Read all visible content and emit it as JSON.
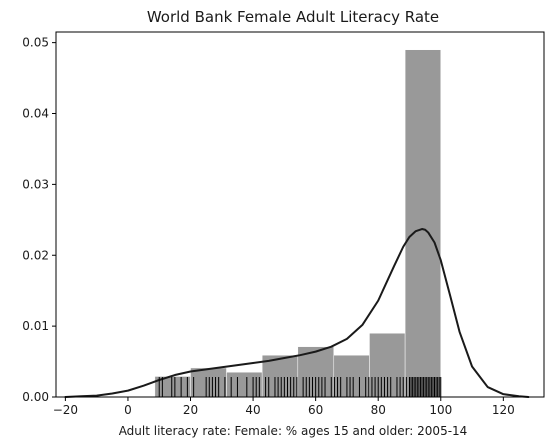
{
  "chart_data": {
    "type": "histogram",
    "title": "World Bank Female Adult Literacy Rate",
    "xlabel": "Adult literacy rate: Female: % ages 15 and older: 2005-14",
    "ylabel": "",
    "xlim": [
      -23,
      133
    ],
    "ylim": [
      0,
      0.0515
    ],
    "xticks": [
      -20,
      0,
      20,
      40,
      60,
      80,
      100,
      120
    ],
    "xtick_labels": [
      "−20",
      "0",
      "20",
      "40",
      "60",
      "80",
      "100",
      "120"
    ],
    "yticks": [
      0.0,
      0.01,
      0.02,
      0.03,
      0.04,
      0.05
    ],
    "ytick_labels": [
      "0.00",
      "0.01",
      "0.02",
      "0.03",
      "0.04",
      "0.05"
    ],
    "grid": false,
    "colors": {
      "bars": "#999999",
      "kde": "#1a1a1a",
      "rug": "#000000",
      "axes": "#000000"
    },
    "histogram": {
      "bin_edges": [
        8.6,
        20.0,
        31.5,
        42.9,
        54.3,
        65.8,
        77.2,
        88.6,
        100.0
      ],
      "densities": [
        0.0029,
        0.0041,
        0.0035,
        0.0059,
        0.0071,
        0.0059,
        0.009,
        0.049
      ]
    },
    "kde": {
      "x": [
        -20,
        -15,
        -10,
        -5,
        0,
        5,
        10,
        15,
        20,
        25,
        30,
        35,
        40,
        45,
        50,
        55,
        60,
        65,
        70,
        75,
        80,
        85,
        88,
        90,
        92,
        94,
        95,
        96,
        98,
        100,
        103,
        106,
        110,
        115,
        120,
        125,
        128
      ],
      "y": [
        0.0,
        0.0001,
        0.0002,
        0.0005,
        0.0009,
        0.0016,
        0.0024,
        0.0031,
        0.0036,
        0.0039,
        0.0042,
        0.0045,
        0.0048,
        0.0051,
        0.0055,
        0.0059,
        0.0064,
        0.0071,
        0.0082,
        0.0102,
        0.0136,
        0.0184,
        0.0212,
        0.0226,
        0.0234,
        0.0237,
        0.0236,
        0.0232,
        0.0218,
        0.0193,
        0.0143,
        0.0092,
        0.0043,
        0.0014,
        0.0004,
        0.0001,
        0.0
      ]
    },
    "rug": [
      10,
      11,
      14,
      15,
      17,
      19,
      21,
      25,
      26,
      27,
      28,
      29,
      31,
      33,
      35,
      38,
      40,
      41,
      42,
      44,
      45,
      47,
      48,
      49,
      50,
      51,
      52,
      53,
      54,
      56,
      57,
      58,
      59,
      60,
      61,
      62,
      63,
      65,
      66,
      67,
      68,
      70,
      71,
      72,
      74,
      76,
      77,
      78,
      79,
      80,
      81,
      82,
      83,
      84,
      86,
      87,
      88,
      89,
      90,
      90.5,
      91,
      91.5,
      92,
      92.5,
      93,
      93.5,
      94,
      94.5,
      95,
      95.5,
      96,
      96.5,
      97,
      97.5,
      98,
      98.5,
      99,
      99.5,
      100
    ]
  }
}
